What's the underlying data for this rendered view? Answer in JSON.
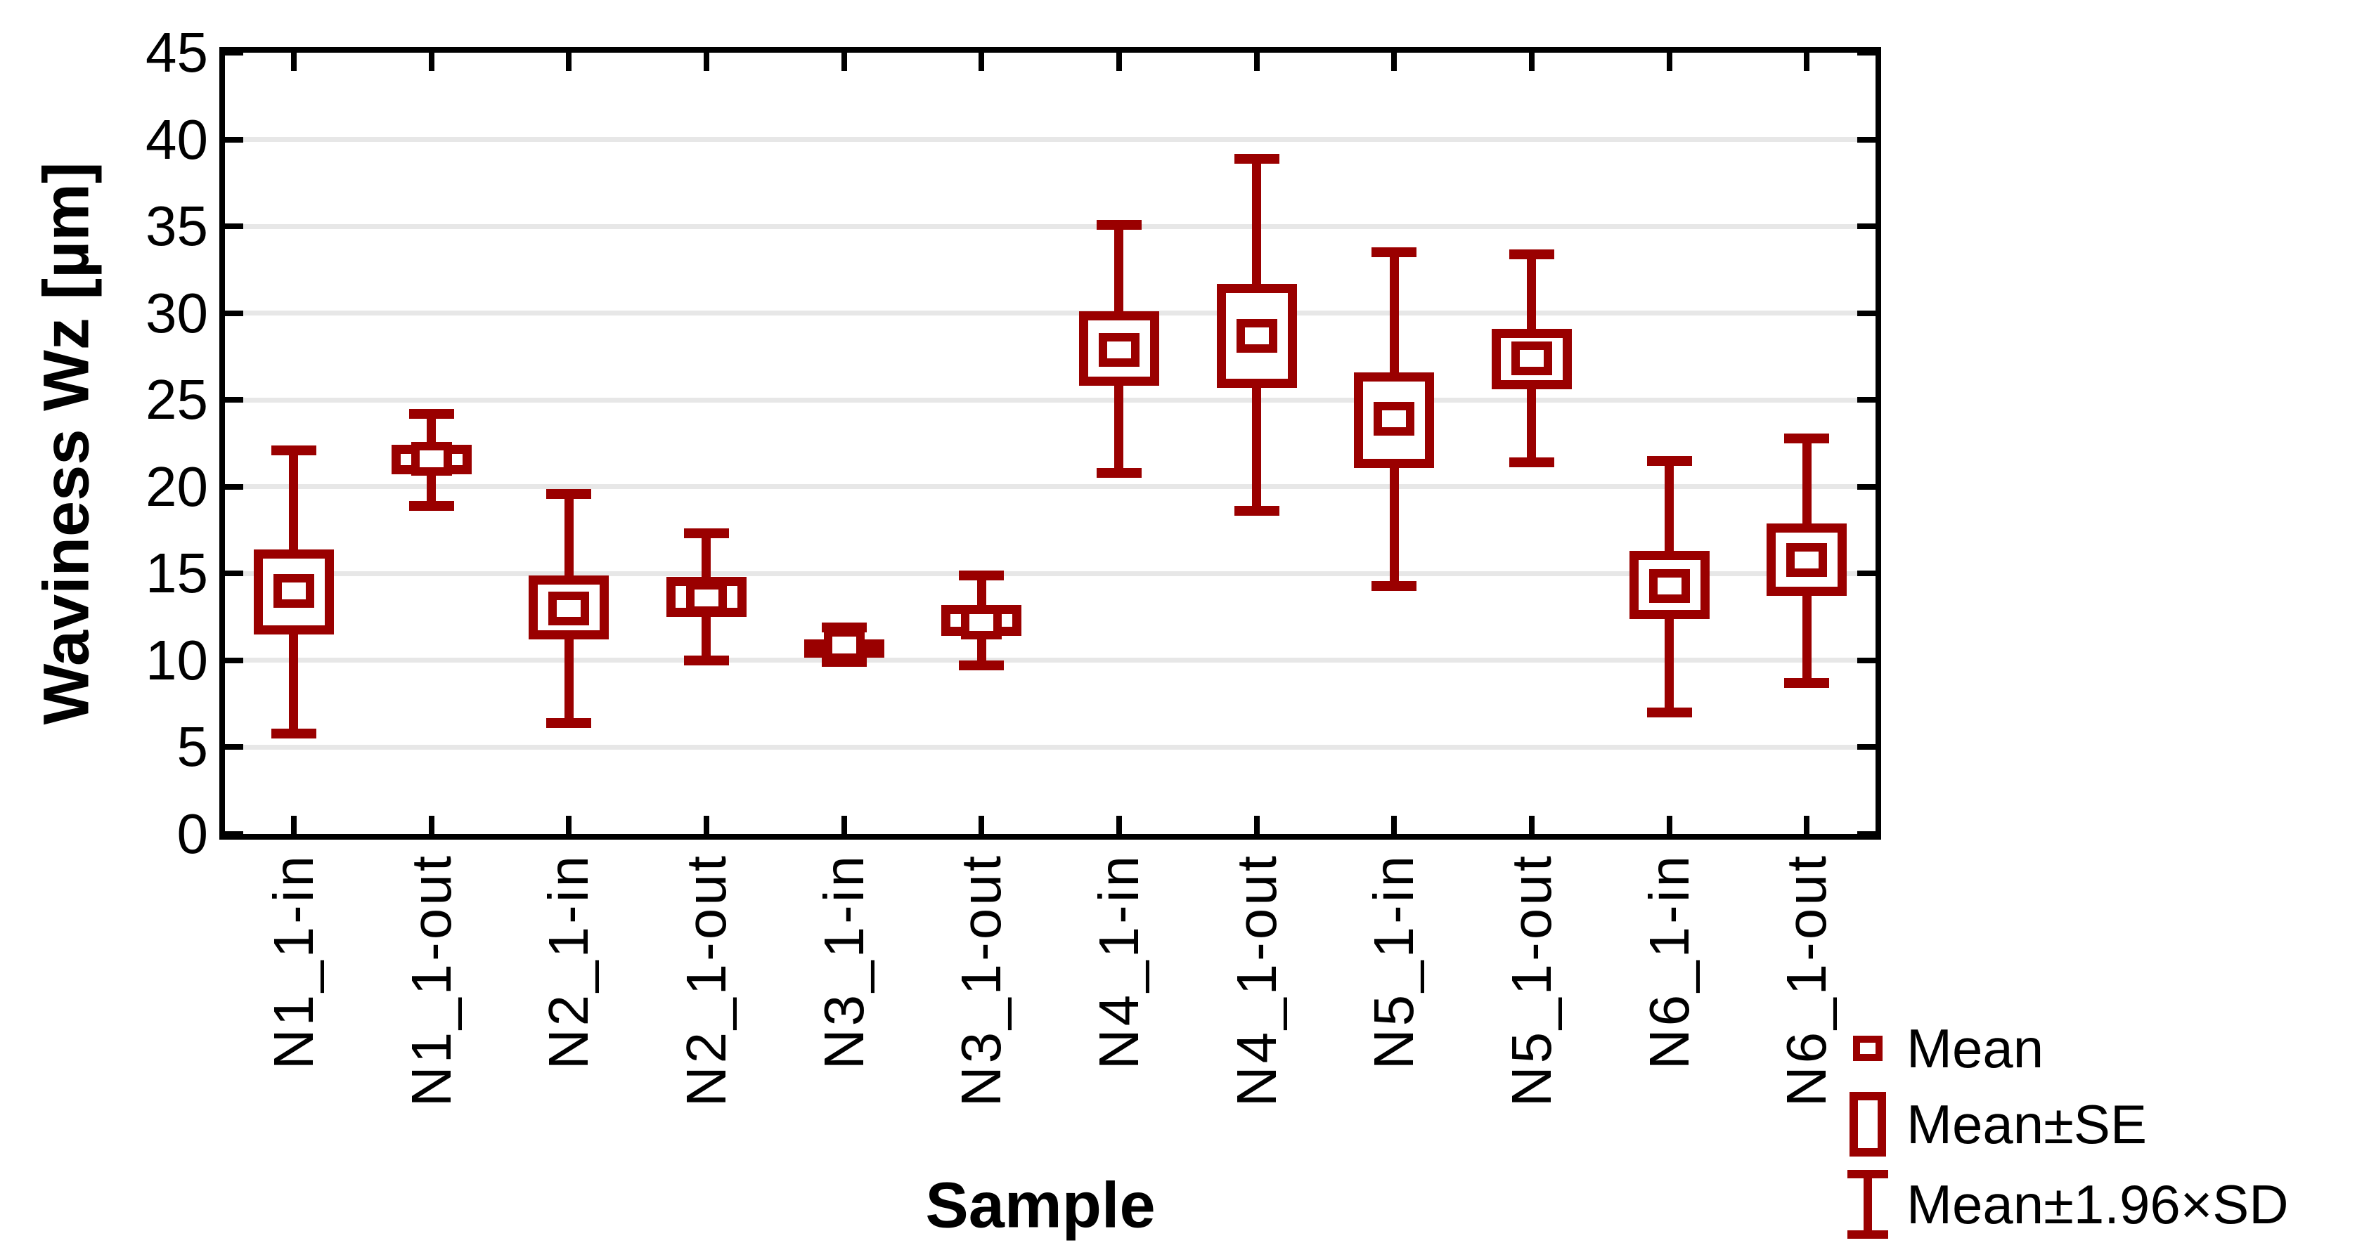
{
  "figure": {
    "background": "#ffffff"
  },
  "colors": {
    "series": "#9A0000",
    "grid": "#E7E7E7",
    "axis": "#000000",
    "plot_background": "#ffffff"
  },
  "y_axis": {
    "title": "Waviness Wz [µm]"
  },
  "x_axis": {
    "title": "Sample"
  },
  "legend": {
    "position": "bottom-right",
    "items": [
      {
        "swatch": "mean-square",
        "label": "Mean"
      },
      {
        "swatch": "se-box",
        "label": "Mean±SE"
      },
      {
        "swatch": "sd-whisker",
        "label": "Mean±1.96×SD"
      }
    ]
  },
  "chart_data": {
    "type": "box",
    "title": "",
    "xlabel": "Sample",
    "ylabel": "Waviness Wz [µm]",
    "ylim": [
      0,
      45
    ],
    "yticks": [
      0,
      5,
      10,
      15,
      20,
      25,
      30,
      35,
      40,
      45
    ],
    "grid": "horizontal-only",
    "legend_position": "bottom-right",
    "box_meaning": {
      "center_point": "Mean",
      "box": "Mean±SE",
      "whisker": "Mean±1.96×SD"
    },
    "categories": [
      "N1_1-in",
      "N1_1-out",
      "N2_1-in",
      "N2_1-out",
      "N3_1-in",
      "N3_1-out",
      "N4_1-in",
      "N4_1-out",
      "N5_1-in",
      "N5_1-out",
      "N6_1-in",
      "N6_1-out"
    ],
    "samples": [
      {
        "label": "N1_1-in",
        "mean": 14.0,
        "se_low": 11.5,
        "se_high": 16.4,
        "sd_low": 5.8,
        "sd_high": 22.1
      },
      {
        "label": "N1_1-out",
        "mean": 21.6,
        "se_low": 20.7,
        "se_high": 22.4,
        "sd_low": 18.9,
        "sd_high": 24.2
      },
      {
        "label": "N2_1-in",
        "mean": 13.0,
        "se_low": 11.2,
        "se_high": 14.9,
        "sd_low": 6.4,
        "sd_high": 19.6
      },
      {
        "label": "N2_1-out",
        "mean": 13.6,
        "se_low": 12.5,
        "se_high": 14.8,
        "sd_low": 10.0,
        "sd_high": 17.3
      },
      {
        "label": "N3_1-in",
        "mean": 10.9,
        "se_low": 10.5,
        "se_high": 11.2,
        "sd_low": 9.9,
        "sd_high": 11.9
      },
      {
        "label": "N3_1-out",
        "mean": 12.2,
        "se_low": 11.4,
        "se_high": 13.2,
        "sd_low": 9.7,
        "sd_high": 14.9
      },
      {
        "label": "N4_1-in",
        "mean": 27.9,
        "se_low": 25.8,
        "se_high": 30.1,
        "sd_low": 20.8,
        "sd_high": 35.1
      },
      {
        "label": "N4_1-out",
        "mean": 28.7,
        "se_low": 25.7,
        "se_high": 31.7,
        "sd_low": 18.6,
        "sd_high": 38.9
      },
      {
        "label": "N5_1-in",
        "mean": 23.9,
        "se_low": 21.1,
        "se_high": 26.6,
        "sd_low": 14.3,
        "sd_high": 33.5
      },
      {
        "label": "N5_1-out",
        "mean": 27.4,
        "se_low": 25.6,
        "se_high": 29.1,
        "sd_low": 21.4,
        "sd_high": 33.4
      },
      {
        "label": "N6_1-in",
        "mean": 14.3,
        "se_low": 12.4,
        "se_high": 16.3,
        "sd_low": 7.0,
        "sd_high": 21.5
      },
      {
        "label": "N6_1-out",
        "mean": 15.8,
        "se_low": 13.7,
        "se_high": 17.9,
        "sd_low": 8.7,
        "sd_high": 22.8
      }
    ]
  }
}
